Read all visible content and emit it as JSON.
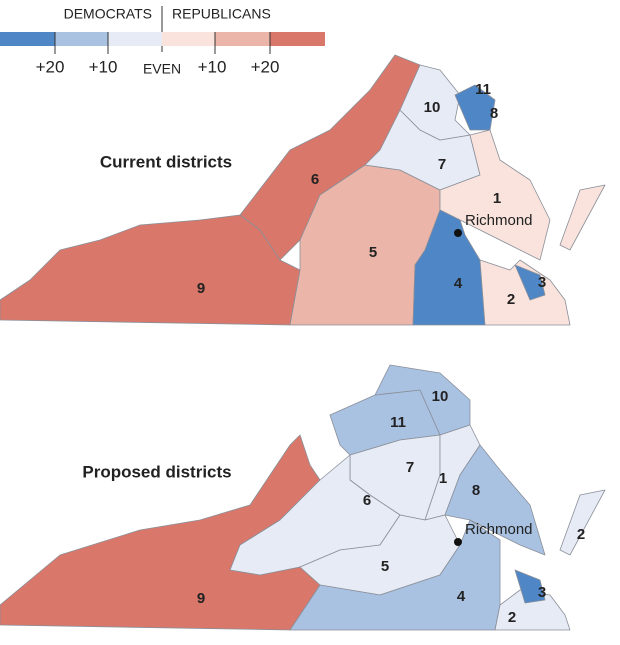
{
  "legend": {
    "left_title": "DEMOCRATS",
    "right_title": "REPUBLICANS",
    "scale_labels": [
      "+20",
      "+10",
      "EVEN",
      "+10",
      "+20"
    ]
  },
  "maps": [
    {
      "title": "Current districts",
      "city": "Richmond",
      "districts": [
        "11",
        "8",
        "10",
        "7",
        "1",
        "6",
        "5",
        "9",
        "4",
        "3",
        "2"
      ]
    },
    {
      "title": "Proposed districts",
      "city": "Richmond",
      "districts": [
        "10",
        "11",
        "7",
        "1",
        "8",
        "6",
        "5",
        "9",
        "4",
        "3",
        "2",
        "2"
      ]
    }
  ]
}
